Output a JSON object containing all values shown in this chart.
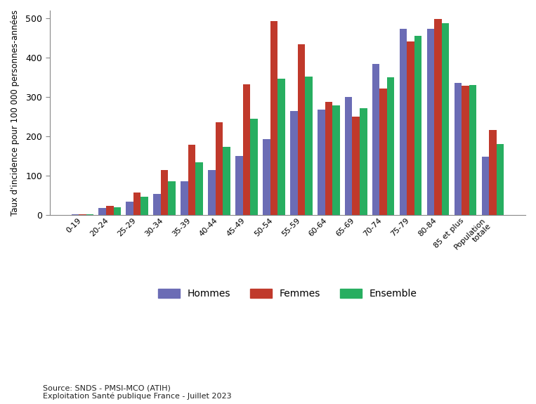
{
  "categories": [
    "0-19",
    "20-24",
    "25-29",
    "30-34",
    "35-39",
    "40-44",
    "45-49",
    "50-54",
    "55-59",
    "60-64",
    "65-69",
    "70-74",
    "75-79",
    "80-84",
    "85 et plus",
    "Population\ntotale"
  ],
  "hommes": [
    2,
    17,
    33,
    53,
    86,
    114,
    150,
    193,
    265,
    268,
    300,
    384,
    474,
    474,
    335,
    148
  ],
  "femmes": [
    2,
    22,
    57,
    114,
    178,
    235,
    332,
    493,
    435,
    288,
    250,
    322,
    442,
    498,
    328,
    216
  ],
  "ensemble": [
    2,
    19,
    46,
    86,
    133,
    173,
    244,
    346,
    351,
    278,
    272,
    350,
    456,
    488,
    330,
    181
  ],
  "color_hommes": "#6b6cb5",
  "color_femmes": "#c0392b",
  "color_ensemble": "#27ae60",
  "ylabel": "Taux d'incidence pour 100 000 personnes-années",
  "ylim": [
    0,
    520
  ],
  "yticks": [
    0,
    100,
    200,
    300,
    400,
    500
  ],
  "legend_labels": [
    "Hommes",
    "Femmes",
    "Ensemble"
  ],
  "source_text": "Source: SNDS - PMSI-MCO (ATIH)\nExploitation Santé publique France - Juillet 2023",
  "background_color": "#ffffff"
}
